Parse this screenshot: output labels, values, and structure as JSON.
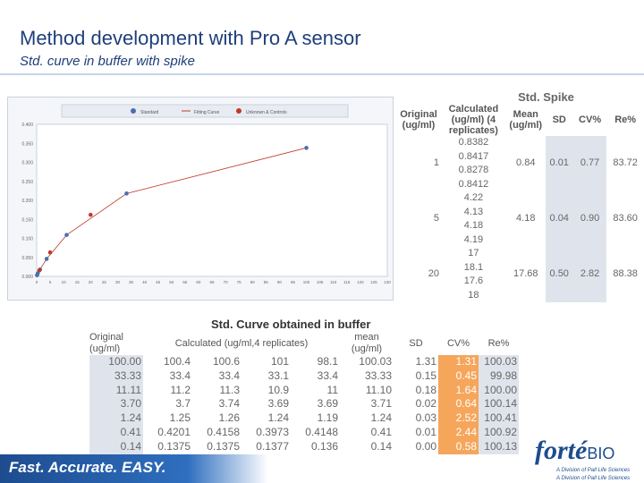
{
  "header": {
    "title": "Method development with Pro A sensor",
    "subtitle": "Std. curve in buffer with spike"
  },
  "spike_table": {
    "title": "Std. Spike",
    "headers": {
      "original": "Original (ug/ml)",
      "calculated": "Calculated (ug/ml) (4 replicates)",
      "mean": "Mean (ug/ml)",
      "sd": "SD",
      "cv": "CV%",
      "re": "Re%"
    },
    "groups": [
      {
        "original": "1",
        "calculated": [
          "0.8382",
          "0.8417",
          "0.8278",
          "0.8412"
        ],
        "mean": "0.84",
        "sd": "0.01",
        "cv": "0.77",
        "re": "83.72"
      },
      {
        "original": "5",
        "calculated": [
          "4.22",
          "4.13",
          "4.18",
          "4.19"
        ],
        "mean": "4.18",
        "sd": "0.04",
        "cv": "0.90",
        "re": "83.60"
      },
      {
        "original": "20",
        "calculated": [
          "17",
          "18.1",
          "17.6",
          "18"
        ],
        "mean": "17.68",
        "sd": "0.50",
        "cv": "2.82",
        "re": "88.38"
      }
    ]
  },
  "curve_table": {
    "title": "Std. Curve obtained in buffer",
    "headers": {
      "original": "Original (ug/ml)",
      "calculated": "Calculated (ug/ml,4 replicates)",
      "mean": "mean (ug/ml)",
      "sd": "SD",
      "cv": "CV%",
      "re": "Re%"
    },
    "rows": [
      {
        "original": "100.00",
        "calc": [
          "100.4",
          "100.6",
          "101",
          "98.1"
        ],
        "mean": "100.03",
        "sd": "1.31",
        "cv": "1.31",
        "re": "100.03"
      },
      {
        "original": "33.33",
        "calc": [
          "33.4",
          "33.4",
          "33.1",
          "33.4"
        ],
        "mean": "33.33",
        "sd": "0.15",
        "cv": "0.45",
        "re": "99.98"
      },
      {
        "original": "11.11",
        "calc": [
          "11.2",
          "11.3",
          "10.9",
          "11"
        ],
        "mean": "11.10",
        "sd": "0.18",
        "cv": "1.64",
        "re": "100.00"
      },
      {
        "original": "3.70",
        "calc": [
          "3.7",
          "3.74",
          "3.69",
          "3.69"
        ],
        "mean": "3.71",
        "sd": "0.02",
        "cv": "0.64",
        "re": "100.14"
      },
      {
        "original": "1.24",
        "calc": [
          "1.25",
          "1.26",
          "1.24",
          "1.19"
        ],
        "mean": "1.24",
        "sd": "0.03",
        "cv": "2.52",
        "re": "100.41"
      },
      {
        "original": "0.41",
        "calc": [
          "0.4201",
          "0.4158",
          "0.3973",
          "0.4148"
        ],
        "mean": "0.41",
        "sd": "0.01",
        "cv": "2.44",
        "re": "100.92"
      },
      {
        "original": "0.14",
        "calc": [
          "0.1375",
          "0.1375",
          "0.1377",
          "0.136"
        ],
        "mean": "0.14",
        "sd": "0.00",
        "cv": "0.58",
        "re": "100.13"
      }
    ]
  },
  "footer": {
    "tagline": "Fast. Accurate. EASY.",
    "logo_main": "forté",
    "logo_bio": "BIO",
    "logo_sub": "A Division of Pall Life Sciences"
  },
  "colors": {
    "title": "#1f3f7a",
    "standard_points": "#4a6fb0",
    "binding_curve": "#c0392b",
    "unknown_points": "#c0392b",
    "highlight_orange": "#f5a65b",
    "shade_gray": "#dfe4ec"
  },
  "chart_data": {
    "type": "scatter",
    "legend": [
      "Standard",
      "Fitting Curve",
      "Unknown & Controls"
    ],
    "legend_position": "top",
    "ylim": [
      0,
      0.4
    ],
    "xlim": [
      0,
      130
    ],
    "yticks": [
      "0.000",
      "0.050",
      "0.100",
      "0.150",
      "0.200",
      "0.250",
      "0.300",
      "0.350",
      "0.400"
    ],
    "xticks": [
      "0",
      "5",
      "10",
      "15",
      "20",
      "25",
      "30",
      "35",
      "40",
      "45",
      "50",
      "55",
      "60",
      "65",
      "70",
      "75",
      "80",
      "85",
      "90",
      "95",
      "100",
      "105",
      "110",
      "115",
      "120",
      "125",
      "130"
    ],
    "series": [
      {
        "name": "Standard",
        "x": [
          0.14,
          0.41,
          1.24,
          3.7,
          11.11,
          33.33,
          100.0
        ],
        "y": [
          0.003,
          0.008,
          0.018,
          0.046,
          0.109,
          0.218,
          0.338
        ]
      },
      {
        "name": "Unknown & Controls",
        "x": [
          1,
          5,
          20
        ],
        "y": [
          0.016,
          0.063,
          0.162
        ]
      }
    ]
  }
}
